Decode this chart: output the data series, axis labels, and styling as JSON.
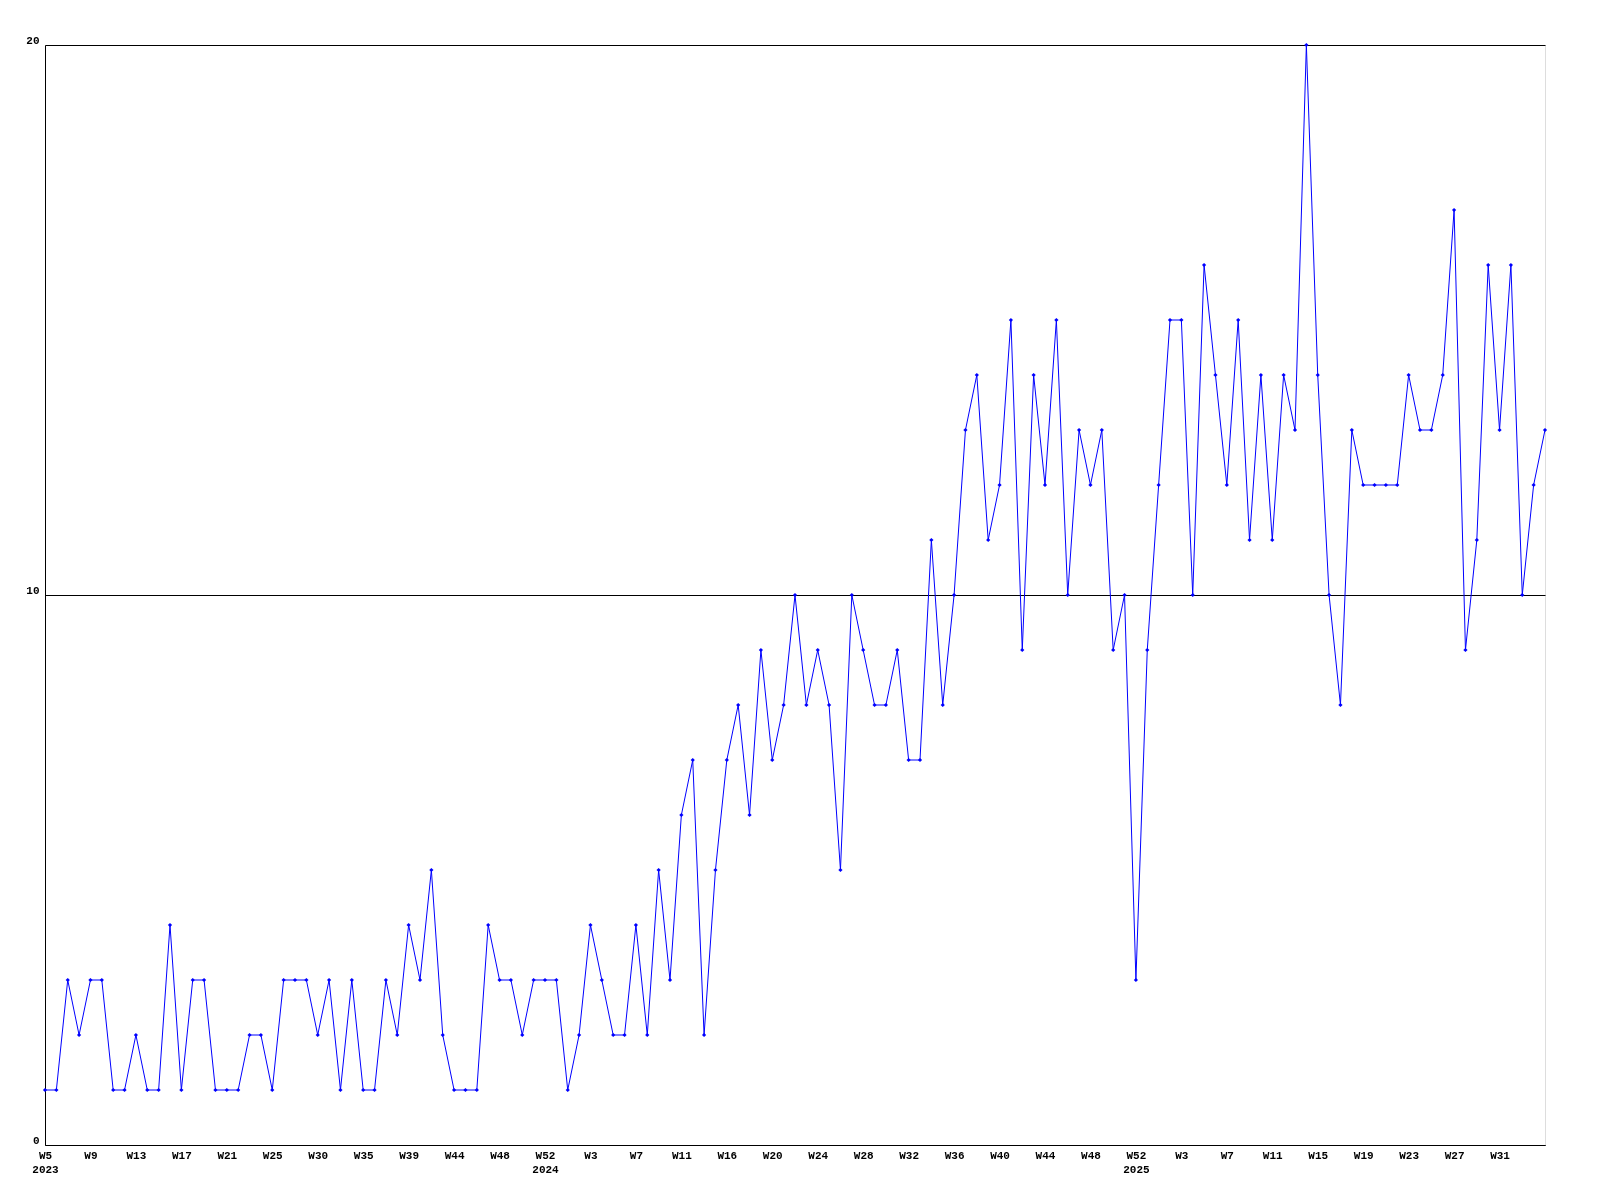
{
  "chart_data": {
    "type": "line",
    "categories": [
      "W5\n2023",
      null,
      null,
      null,
      "W9",
      null,
      null,
      null,
      "W13",
      null,
      null,
      null,
      "W17",
      null,
      null,
      null,
      "W21",
      null,
      null,
      null,
      "W25",
      null,
      null,
      null,
      "W30",
      null,
      null,
      null,
      "W35",
      null,
      null,
      null,
      "W39",
      null,
      null,
      null,
      "W44",
      null,
      null,
      null,
      "W48",
      null,
      null,
      null,
      "W52\n2024",
      null,
      null,
      null,
      "W3",
      null,
      null,
      null,
      "W7",
      null,
      null,
      null,
      "W11",
      null,
      null,
      null,
      "W16",
      null,
      null,
      null,
      "W20",
      null,
      null,
      null,
      "W24",
      null,
      null,
      null,
      "W28",
      null,
      null,
      null,
      "W32",
      null,
      null,
      null,
      "W36",
      null,
      null,
      null,
      "W40",
      null,
      null,
      null,
      "W44",
      null,
      null,
      null,
      "W48",
      null,
      null,
      null,
      "W52\n2025",
      null,
      null,
      null,
      "W3",
      null,
      null,
      null,
      "W7",
      null,
      null,
      null,
      "W11",
      null,
      null,
      null,
      "W15",
      null,
      null,
      null,
      "W19",
      null,
      null,
      null,
      "W23",
      null,
      null,
      null,
      "W27",
      null,
      null,
      null,
      "W31",
      null,
      null,
      null,
      null
    ],
    "series": [
      {
        "color": "#0000ff",
        "values": [
          1,
          1,
          3,
          2,
          3,
          3,
          1,
          1,
          2,
          1,
          1,
          4,
          1,
          3,
          3,
          1,
          1,
          1,
          2,
          2,
          1,
          3,
          3,
          3,
          2,
          3,
          1,
          3,
          1,
          1,
          3,
          2,
          4,
          3,
          5,
          2,
          1,
          1,
          1,
          4,
          3,
          3,
          2,
          3,
          3,
          3,
          1,
          2,
          4,
          3,
          2,
          2,
          4,
          2,
          5,
          3,
          6,
          7,
          2,
          5,
          7,
          8,
          6,
          9,
          7,
          8,
          10,
          8,
          9,
          8,
          5,
          10,
          9,
          8,
          8,
          9,
          7,
          7,
          11,
          8,
          10,
          13,
          14,
          11,
          12,
          15,
          9,
          14,
          12,
          15,
          10,
          13,
          12,
          13,
          9,
          10,
          3,
          9,
          12,
          15,
          15,
          10,
          16,
          14,
          12,
          15,
          11,
          14,
          11,
          14,
          13,
          20,
          14,
          10,
          8,
          13,
          12,
          12,
          12,
          12,
          14,
          13,
          13,
          14,
          17,
          9,
          11,
          16,
          13,
          16,
          10,
          12,
          13
        ]
      }
    ],
    "ylim": [
      0,
      20
    ],
    "yticks": [
      0,
      10,
      20
    ],
    "grid": "y",
    "marker": "diamond",
    "line_style": "solid",
    "legend": false
  }
}
